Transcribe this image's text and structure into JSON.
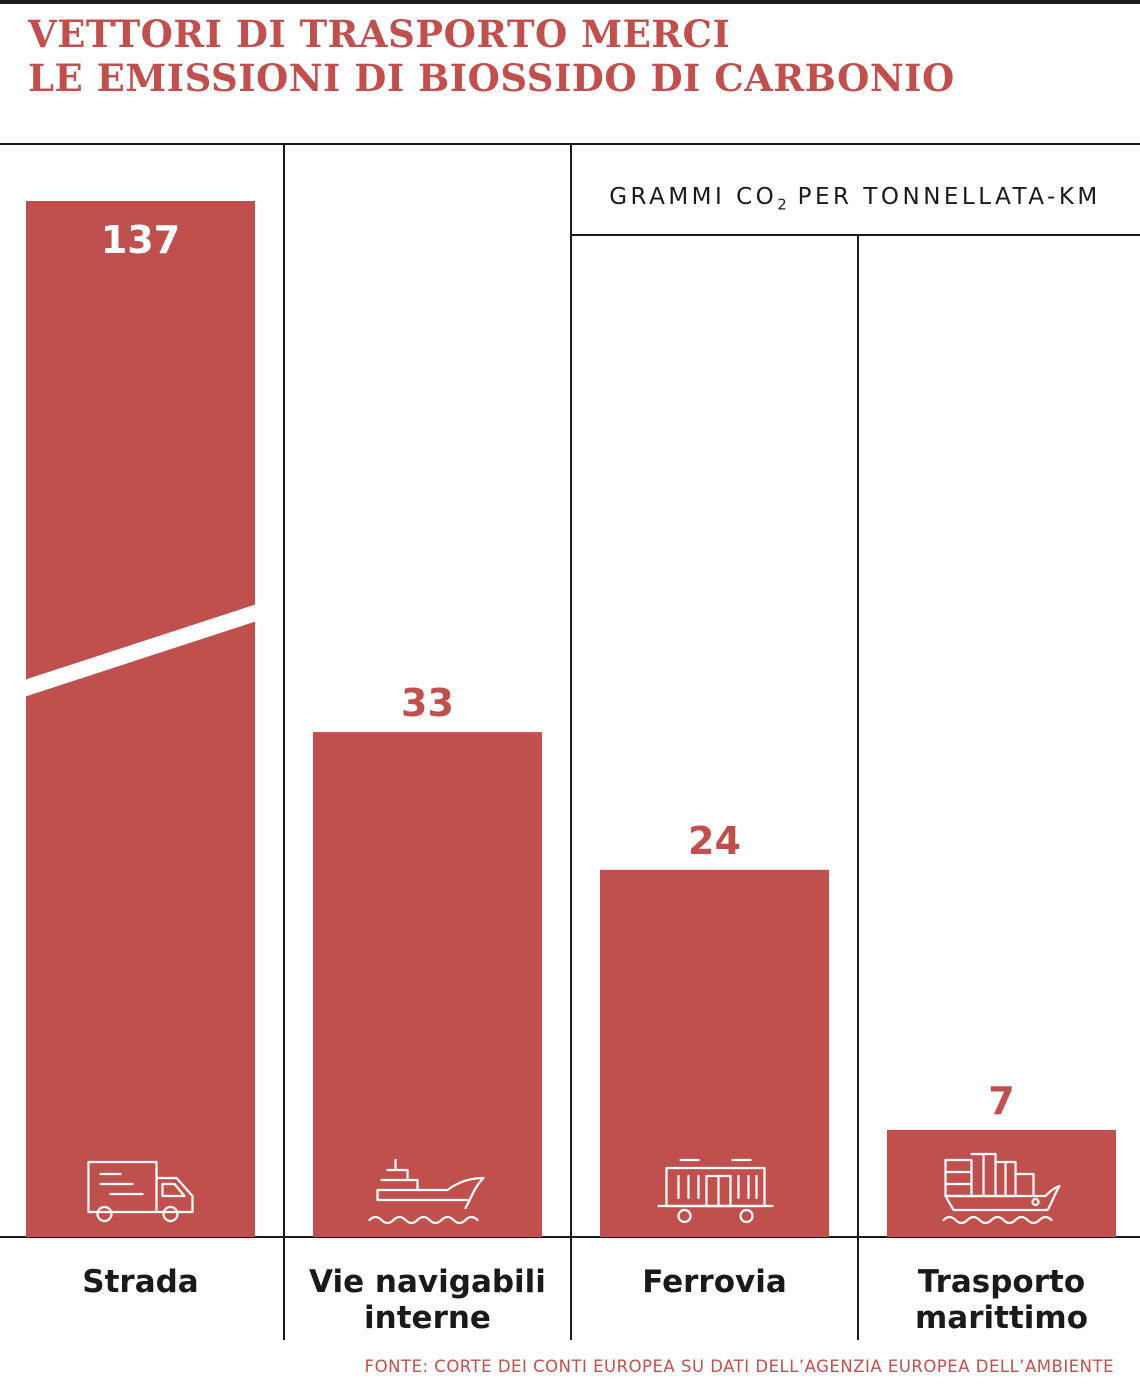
{
  "title_lines": [
    "VETTORI DI TRASPORTO MERCI",
    "LE EMISSIONI DI BIOSSIDO DI CARBONIO"
  ],
  "unit": {
    "prefix": "GRAMMI CO",
    "subscript": "2",
    "suffix": " PER TONNELLATA-KM"
  },
  "source": "FONTE: CORTE DEI CONTI EUROPEA SU DATI DELL’AGENZIA EUROPEA DELL’AMBIENTE",
  "colors": {
    "bar": "#c0504d",
    "title": "#c0504d",
    "lines": "#1a1a1a",
    "label_on_bar": "#ffffff"
  },
  "chart_data": {
    "type": "bar",
    "categories": [
      [
        "Strada"
      ],
      [
        "Vie navigabili",
        "interne"
      ],
      [
        "Ferrovia"
      ],
      [
        "Trasporto",
        "marittimo"
      ]
    ],
    "values": [
      137,
      33,
      24,
      7
    ],
    "icons": [
      "truck-icon",
      "barge-icon",
      "freight-wagon-icon",
      "container-ship-icon"
    ],
    "axis_break_on": "Strada",
    "grid": false,
    "ylabel": "GRAMMI CO2 PER TONNELLATA-KM"
  }
}
